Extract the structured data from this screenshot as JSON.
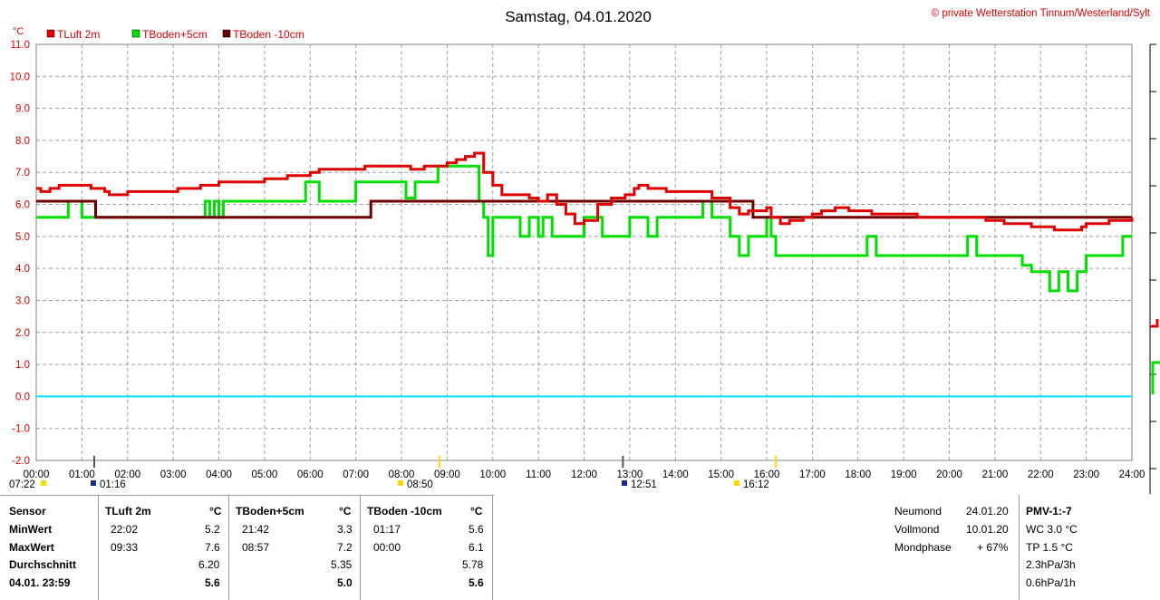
{
  "title": "Samstag, 04.01.2020",
  "copyright": "© private Wetterstation Tinnum/Westerland/Sylt",
  "unit": "°C",
  "colors": {
    "tluft": "#e00000",
    "tboden5": "#00e000",
    "tboden10": "#700000",
    "zero_line": "#00e0ff",
    "grid": "#a0a0a0"
  },
  "chart_data": {
    "type": "line",
    "xlabel": "",
    "ylabel": "°C",
    "xlim": [
      0,
      24
    ],
    "ylim": [
      -2.0,
      11.0
    ],
    "grid": true,
    "legend_position": "top-left",
    "x_ticks": [
      "00:00",
      "01:00",
      "02:00",
      "03:00",
      "04:00",
      "05:00",
      "06:00",
      "07:00",
      "08:00",
      "09:00",
      "10:00",
      "11:00",
      "12:00",
      "13:00",
      "14:00",
      "15:00",
      "16:00",
      "17:00",
      "18:00",
      "19:00",
      "20:00",
      "21:00",
      "22:00",
      "23:00",
      "24:00"
    ],
    "y_ticks": [
      "11.0",
      "10.0",
      "9.0",
      "8.0",
      "7.0",
      "6.0",
      "5.0",
      "4.0",
      "3.0",
      "2.0",
      "1.0",
      "0.0",
      "-1.0",
      "-2.0"
    ],
    "series": [
      {
        "name": "TLuft 2m",
        "color": "#e00000",
        "x": [
          0,
          0.1,
          0.3,
          0.5,
          1.0,
          1.2,
          1.5,
          1.6,
          1.8,
          2.0,
          2.5,
          3.0,
          3.1,
          3.3,
          3.6,
          3.8,
          4.0,
          4.5,
          5.0,
          5.3,
          5.5,
          5.8,
          6.0,
          6.2,
          6.5,
          7.0,
          7.2,
          7.4,
          7.6,
          8.0,
          8.2,
          8.5,
          8.8,
          9.0,
          9.2,
          9.4,
          9.5,
          9.6,
          9.7,
          9.8,
          10.0,
          10.2,
          10.5,
          10.8,
          11.0,
          11.2,
          11.4,
          11.6,
          11.8,
          12.0,
          12.3,
          12.6,
          12.9,
          13.1,
          13.2,
          13.4,
          13.6,
          13.8,
          14.0,
          14.2,
          14.6,
          14.8,
          15.0,
          15.2,
          15.4,
          15.6,
          15.8,
          16.0,
          16.1,
          16.3,
          16.5,
          16.8,
          17.0,
          17.2,
          17.5,
          17.8,
          18.0,
          18.3,
          18.6,
          19.0,
          19.3,
          19.6,
          19.9,
          20.2,
          20.5,
          20.8,
          21.0,
          21.2,
          21.5,
          21.8,
          22.0,
          22.3,
          22.6,
          22.9,
          23.0,
          23.2,
          23.5,
          23.7,
          24.0
        ],
        "y": [
          6.5,
          6.4,
          6.5,
          6.6,
          6.6,
          6.5,
          6.4,
          6.3,
          6.3,
          6.4,
          6.4,
          6.4,
          6.5,
          6.5,
          6.6,
          6.6,
          6.7,
          6.7,
          6.8,
          6.8,
          6.9,
          6.9,
          7.0,
          7.1,
          7.1,
          7.1,
          7.2,
          7.2,
          7.2,
          7.2,
          7.1,
          7.2,
          7.2,
          7.3,
          7.4,
          7.5,
          7.5,
          7.6,
          7.6,
          7.0,
          6.6,
          6.3,
          6.3,
          6.2,
          6.1,
          6.3,
          6.0,
          5.7,
          5.4,
          5.5,
          6.0,
          6.2,
          6.3,
          6.5,
          6.6,
          6.5,
          6.5,
          6.4,
          6.4,
          6.4,
          6.4,
          6.2,
          6.2,
          5.9,
          5.7,
          5.8,
          5.8,
          5.9,
          5.6,
          5.4,
          5.5,
          5.6,
          5.7,
          5.8,
          5.9,
          5.8,
          5.8,
          5.7,
          5.7,
          5.7,
          5.6,
          5.6,
          5.6,
          5.6,
          5.6,
          5.5,
          5.5,
          5.4,
          5.4,
          5.3,
          5.3,
          5.2,
          5.2,
          5.3,
          5.4,
          5.4,
          5.5,
          5.5,
          5.6
        ]
      },
      {
        "name": "TBoden+5cm",
        "color": "#00e000",
        "x": [
          0,
          0.6,
          0.7,
          0.9,
          1.0,
          1.2,
          1.4,
          3.6,
          3.7,
          3.8,
          3.9,
          4.0,
          4.1,
          4.2,
          5.5,
          5.8,
          5.9,
          6.1,
          6.2,
          7.0,
          7.8,
          8.0,
          8.1,
          8.3,
          8.4,
          8.8,
          9.0,
          9.2,
          9.3,
          9.4,
          9.5,
          9.7,
          9.8,
          9.9,
          10.0,
          10.5,
          10.6,
          10.8,
          11.0,
          11.1,
          11.3,
          11.4,
          12.0,
          12.1,
          12.4,
          12.6,
          12.8,
          13.0,
          13.2,
          13.4,
          13.6,
          13.8,
          14.0,
          14.2,
          14.4,
          14.6,
          14.8,
          15.0,
          15.2,
          15.4,
          15.6,
          15.8,
          16.0,
          16.1,
          16.2,
          16.4,
          16.6,
          16.8,
          17.0,
          17.2,
          17.4,
          17.6,
          17.8,
          18.0,
          18.2,
          18.4,
          18.6,
          18.8,
          19.0,
          19.4,
          19.6,
          19.8,
          20.0,
          20.2,
          20.4,
          20.6,
          20.8,
          21.0,
          21.2,
          21.4,
          21.6,
          21.8,
          22.0,
          22.2,
          22.4,
          22.6,
          22.8,
          23.0,
          23.2,
          23.4,
          23.6,
          23.8,
          24.0
        ],
        "y": [
          5.6,
          5.6,
          6.1,
          6.1,
          5.6,
          5.6,
          5.6,
          5.6,
          6.1,
          5.6,
          6.1,
          5.6,
          6.1,
          6.1,
          6.1,
          6.1,
          6.7,
          6.7,
          6.1,
          6.7,
          6.7,
          6.7,
          6.2,
          6.7,
          6.7,
          7.2,
          7.2,
          7.2,
          7.2,
          7.2,
          7.2,
          6.1,
          5.6,
          4.4,
          5.6,
          5.6,
          5.0,
          5.6,
          5.0,
          5.6,
          5.0,
          5.0,
          5.6,
          5.6,
          5.0,
          5.0,
          5.0,
          5.6,
          5.6,
          5.0,
          5.6,
          5.6,
          5.6,
          5.6,
          5.6,
          6.1,
          5.6,
          5.6,
          5.0,
          4.4,
          5.0,
          5.0,
          5.6,
          5.0,
          4.4,
          4.4,
          4.4,
          4.4,
          4.4,
          4.4,
          4.4,
          4.4,
          4.4,
          4.4,
          5.0,
          4.4,
          4.4,
          4.4,
          4.4,
          4.4,
          4.4,
          4.4,
          4.4,
          4.4,
          5.0,
          4.4,
          4.4,
          4.4,
          4.4,
          4.4,
          4.1,
          3.9,
          3.9,
          3.3,
          3.9,
          3.3,
          3.9,
          4.4,
          4.4,
          4.4,
          4.4,
          5.0,
          5.0
        ]
      },
      {
        "name": "TBoden -10cm",
        "color": "#700000",
        "x": [
          0,
          1.3,
          1.3,
          7.33,
          7.33,
          15.7,
          15.7,
          24.0
        ],
        "y": [
          6.1,
          6.1,
          5.6,
          5.6,
          6.1,
          6.1,
          5.6,
          5.6
        ]
      },
      {
        "name": "",
        "color": "#00e0ff",
        "x": [
          0,
          24
        ],
        "y": [
          0.0,
          0.0
        ]
      }
    ],
    "legend": [
      "TLuft 2m",
      "TBoden+5cm",
      "TBoden -10cm"
    ]
  },
  "sun_moon_markers": [
    {
      "label": "07:22",
      "hour": 0.0
    },
    {
      "label": "01:16",
      "hour": 1.27
    },
    {
      "label": "08:50",
      "hour": 8.83
    },
    {
      "label": "12:51",
      "hour": 12.85
    },
    {
      "label": "16:12",
      "hour": 16.2
    }
  ],
  "table": {
    "header": [
      "Sensor",
      "TLuft 2m",
      "°C",
      "TBoden+5cm",
      "°C",
      "TBoden -10cm",
      "°C"
    ],
    "rows": [
      {
        "label": "MinWert",
        "v1t": "22:02",
        "v1": "5.2",
        "v2t": "21:42",
        "v2": "3.3",
        "v3t": "01:17",
        "v3": "5.6"
      },
      {
        "label": "MaxWert",
        "v1t": "09:33",
        "v1": "7.6",
        "v2t": "08:57",
        "v2": "7.2",
        "v3t": "00:00",
        "v3": "6.1"
      },
      {
        "label": "Durchschnitt",
        "v1t": "",
        "v1": "6.20",
        "v2t": "",
        "v2": "5.35",
        "v3t": "",
        "v3": "5.78"
      },
      {
        "label": "04.01. 23:59",
        "v1t": "",
        "v1": "5.6",
        "v2t": "",
        "v2": "5.0",
        "v3t": "",
        "v3": "5.6"
      }
    ]
  },
  "moon": {
    "neumond_label": "Neumond",
    "neumond_date": "24.01.20",
    "vollmond_label": "Vollmond",
    "vollmond_date": "10.01.20",
    "phase_label": "Mondphase",
    "phase_value": "+ 67%"
  },
  "pmv": {
    "title": "PMV-1:-7",
    "wc": "WC 3.0 °C",
    "tp": "TP 1.5 °C",
    "p3h": "2.3hPa/3h",
    "p1h": "0.6hPa/1h"
  }
}
